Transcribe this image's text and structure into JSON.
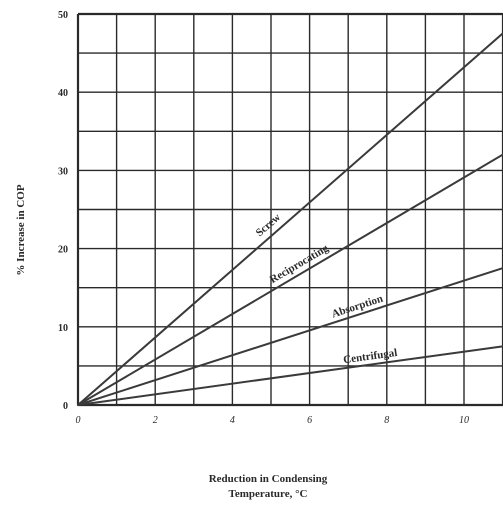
{
  "chart_data": {
    "type": "line",
    "title": "",
    "xlabel_lines": [
      "Reduction in Condensing",
      "Temperature, °C"
    ],
    "ylabel": "% Increase in COP",
    "xlim": [
      0,
      11
    ],
    "ylim": [
      0,
      50
    ],
    "x_ticks": [
      0,
      2,
      4,
      6,
      8,
      10
    ],
    "y_ticks": [
      0,
      10,
      20,
      30,
      40,
      50
    ],
    "grid": true,
    "legend": "none",
    "series": [
      {
        "name": "Screw",
        "x": [
          0,
          11
        ],
        "y": [
          0,
          47.5
        ]
      },
      {
        "name": "Reciprocating",
        "x": [
          0,
          11
        ],
        "y": [
          0,
          32
        ]
      },
      {
        "name": "Absorption",
        "x": [
          0,
          11
        ],
        "y": [
          0,
          17.5
        ]
      },
      {
        "name": "Centrifugal",
        "x": [
          0,
          11
        ],
        "y": [
          0,
          7.5
        ]
      }
    ],
    "colors": {
      "line": "#3a3a3a",
      "grid": "#2a2a2a",
      "text": "#2a2a2a"
    }
  }
}
